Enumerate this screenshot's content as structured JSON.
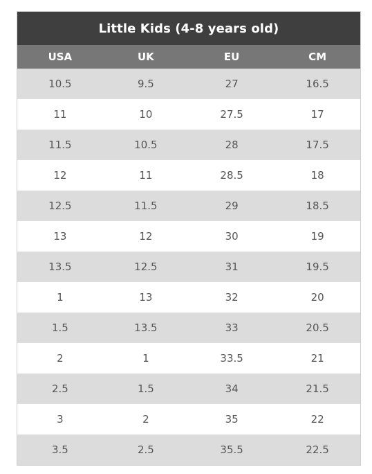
{
  "table": {
    "title": "Little Kids (4-8 years old)",
    "columns": [
      "USA",
      "UK",
      "EU",
      "CM"
    ],
    "rows": [
      [
        "10.5",
        "9.5",
        "27",
        "16.5"
      ],
      [
        "11",
        "10",
        "27.5",
        "17"
      ],
      [
        "11.5",
        "10.5",
        "28",
        "17.5"
      ],
      [
        "12",
        "11",
        "28.5",
        "18"
      ],
      [
        "12.5",
        "11.5",
        "29",
        "18.5"
      ],
      [
        "13",
        "12",
        "30",
        "19"
      ],
      [
        "13.5",
        "12.5",
        "31",
        "19.5"
      ],
      [
        "1",
        "13",
        "32",
        "20"
      ],
      [
        "1.5",
        "13.5",
        "33",
        "20.5"
      ],
      [
        "2",
        "1",
        "33.5",
        "21"
      ],
      [
        "2.5",
        "1.5",
        "34",
        "21.5"
      ],
      [
        "3",
        "2",
        "35",
        "22"
      ],
      [
        "3.5",
        "2.5",
        "35.5",
        "22.5"
      ]
    ]
  },
  "colors": {
    "title_bg": "#3f3f3f",
    "header_bg": "#777777",
    "stripe_bg": "#dcdcdc",
    "text": "#555555"
  }
}
